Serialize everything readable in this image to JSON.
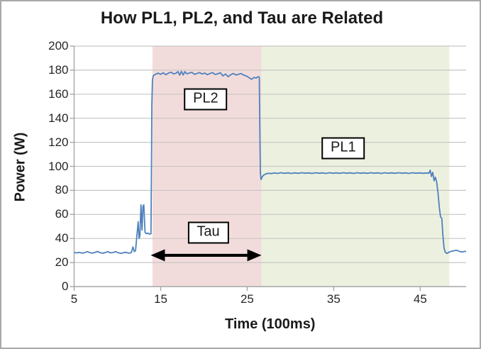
{
  "title": "How PL1, PL2, and Tau are Related",
  "chart_data": {
    "type": "line",
    "title": "How PL1, PL2, and Tau are Related",
    "xlabel": "Time (100ms)",
    "ylabel": "Power (W)",
    "xlim": [
      5,
      50.3
    ],
    "ylim": [
      0,
      200
    ],
    "x_ticks": [
      5,
      15,
      25,
      35,
      45
    ],
    "y_ticks": [
      0,
      20,
      40,
      60,
      80,
      100,
      120,
      140,
      160,
      180,
      200
    ],
    "grid": "horizontal",
    "legend": "none",
    "colors": {
      "line": "#4f81bd",
      "tau_region": "#f2dcdb",
      "pl1_region": "#ecf1df",
      "gridline": "#c6c6c6",
      "axis": "#a6a6a6",
      "annotation_border": "#000000",
      "annotation_fill": "#ffffff",
      "arrow": "#000000"
    },
    "regions": [
      {
        "name": "tau-region",
        "x0": 14.05,
        "x1": 26.65,
        "color": "#f2dcdb"
      },
      {
        "name": "pl1-region",
        "x0": 26.65,
        "x1": 48.35,
        "color": "#ecf1df"
      }
    ],
    "annotations": [
      {
        "name": "pl2-label",
        "label": "PL2",
        "x": 20.2,
        "y": 156
      },
      {
        "name": "pl1-label",
        "label": "PL1",
        "x": 36.1,
        "y": 115
      },
      {
        "name": "tau-label",
        "label": "Tau",
        "x": 20.5,
        "y": 45
      }
    ],
    "arrow": {
      "name": "tau-arrow",
      "x0": 13.85,
      "x1": 26.65,
      "y": 26,
      "double_headed": true
    },
    "series": [
      {
        "name": "Power",
        "points": [
          [
            5.0,
            28.3
          ],
          [
            5.3,
            28.0
          ],
          [
            5.6,
            28.5
          ],
          [
            5.9,
            27.8
          ],
          [
            6.2,
            28.2
          ],
          [
            6.5,
            29.0
          ],
          [
            6.8,
            28.3
          ],
          [
            7.1,
            27.8
          ],
          [
            7.4,
            28.4
          ],
          [
            7.7,
            29.2
          ],
          [
            8.0,
            28.2
          ],
          [
            8.3,
            27.7
          ],
          [
            8.6,
            28.3
          ],
          [
            8.9,
            29.0
          ],
          [
            9.2,
            28.0
          ],
          [
            9.5,
            28.3
          ],
          [
            9.8,
            29.1
          ],
          [
            10.1,
            28.1
          ],
          [
            10.4,
            27.6
          ],
          [
            10.7,
            28.2
          ],
          [
            11.0,
            28.5
          ],
          [
            11.3,
            27.8
          ],
          [
            11.6,
            28.2
          ],
          [
            11.8,
            33.0
          ],
          [
            11.95,
            29.0
          ],
          [
            12.1,
            30.0
          ],
          [
            12.25,
            42.0
          ],
          [
            12.4,
            54.0
          ],
          [
            12.5,
            40.0
          ],
          [
            12.6,
            42.5
          ],
          [
            12.72,
            68.0
          ],
          [
            12.85,
            47.0
          ],
          [
            12.95,
            66.5
          ],
          [
            13.05,
            68.0
          ],
          [
            13.2,
            45.0
          ],
          [
            13.35,
            44.0
          ],
          [
            13.55,
            44.5
          ],
          [
            13.75,
            43.5
          ],
          [
            13.88,
            44.0
          ],
          [
            13.93,
            90.0
          ],
          [
            13.98,
            150.0
          ],
          [
            14.05,
            172.0
          ],
          [
            14.15,
            175.5
          ],
          [
            14.4,
            176.5
          ],
          [
            14.7,
            177.5
          ],
          [
            15.0,
            176.5
          ],
          [
            15.3,
            177.8
          ],
          [
            15.6,
            176.2
          ],
          [
            15.9,
            177.5
          ],
          [
            16.2,
            178.3
          ],
          [
            16.5,
            176.8
          ],
          [
            16.8,
            177.6
          ],
          [
            17.0,
            178.8
          ],
          [
            17.2,
            175.8
          ],
          [
            17.4,
            179.0
          ],
          [
            17.6,
            176.0
          ],
          [
            17.8,
            178.8
          ],
          [
            18.0,
            177.0
          ],
          [
            18.3,
            177.6
          ],
          [
            18.6,
            178.2
          ],
          [
            18.9,
            176.6
          ],
          [
            19.2,
            177.2
          ],
          [
            19.5,
            178.0
          ],
          [
            19.8,
            176.8
          ],
          [
            20.1,
            177.6
          ],
          [
            20.4,
            176.2
          ],
          [
            20.7,
            177.2
          ],
          [
            21.0,
            178.0
          ],
          [
            21.3,
            176.4
          ],
          [
            21.6,
            177.0
          ],
          [
            21.9,
            177.8
          ],
          [
            22.2,
            175.2
          ],
          [
            22.5,
            176.8
          ],
          [
            22.8,
            174.6
          ],
          [
            23.1,
            176.2
          ],
          [
            23.4,
            177.2
          ],
          [
            23.7,
            176.0
          ],
          [
            24.0,
            176.6
          ],
          [
            24.3,
            177.2
          ],
          [
            24.6,
            175.8
          ],
          [
            24.9,
            175.2
          ],
          [
            25.2,
            173.8
          ],
          [
            25.5,
            172.4
          ],
          [
            25.8,
            174.0
          ],
          [
            26.05,
            173.4
          ],
          [
            26.25,
            174.6
          ],
          [
            26.4,
            174.2
          ],
          [
            26.45,
            140.0
          ],
          [
            26.52,
            95.0
          ],
          [
            26.6,
            89.0
          ],
          [
            26.75,
            91.5
          ],
          [
            26.95,
            93.0
          ],
          [
            27.2,
            93.8
          ],
          [
            27.5,
            94.3
          ],
          [
            27.8,
            94.0
          ],
          [
            28.1,
            94.5
          ],
          [
            28.5,
            94.1
          ],
          [
            28.9,
            94.7
          ],
          [
            29.3,
            94.2
          ],
          [
            29.7,
            94.6
          ],
          [
            30.1,
            94.1
          ],
          [
            30.5,
            94.6
          ],
          [
            30.9,
            94.2
          ],
          [
            31.3,
            94.7
          ],
          [
            31.7,
            94.3
          ],
          [
            32.1,
            94.6
          ],
          [
            32.5,
            94.1
          ],
          [
            32.9,
            94.7
          ],
          [
            33.3,
            94.3
          ],
          [
            33.7,
            94.6
          ],
          [
            34.1,
            94.1
          ],
          [
            34.5,
            94.7
          ],
          [
            34.9,
            94.3
          ],
          [
            35.3,
            94.6
          ],
          [
            35.7,
            94.2
          ],
          [
            36.1,
            94.7
          ],
          [
            36.5,
            94.3
          ],
          [
            36.9,
            94.6
          ],
          [
            37.3,
            94.1
          ],
          [
            37.7,
            94.7
          ],
          [
            38.1,
            94.3
          ],
          [
            38.5,
            94.6
          ],
          [
            38.9,
            94.2
          ],
          [
            39.3,
            94.7
          ],
          [
            39.7,
            94.3
          ],
          [
            40.1,
            94.6
          ],
          [
            40.5,
            94.1
          ],
          [
            40.9,
            94.7
          ],
          [
            41.3,
            94.3
          ],
          [
            41.7,
            94.6
          ],
          [
            42.1,
            94.2
          ],
          [
            42.5,
            94.7
          ],
          [
            42.9,
            94.3
          ],
          [
            43.3,
            94.6
          ],
          [
            43.7,
            94.1
          ],
          [
            44.1,
            94.7
          ],
          [
            44.5,
            94.3
          ],
          [
            44.9,
            94.6
          ],
          [
            45.3,
            94.2
          ],
          [
            45.7,
            94.5
          ],
          [
            46.0,
            94.3
          ],
          [
            46.15,
            96.8
          ],
          [
            46.3,
            91.5
          ],
          [
            46.45,
            95.0
          ],
          [
            46.6,
            88.0
          ],
          [
            46.75,
            91.0
          ],
          [
            46.9,
            87.0
          ],
          [
            47.05,
            78.0
          ],
          [
            47.2,
            66.0
          ],
          [
            47.35,
            58.0
          ],
          [
            47.5,
            56.5
          ],
          [
            47.6,
            44.0
          ],
          [
            47.75,
            32.0
          ],
          [
            47.9,
            28.5
          ],
          [
            48.1,
            27.6
          ],
          [
            48.35,
            28.8
          ],
          [
            48.6,
            29.3
          ],
          [
            48.9,
            29.8
          ],
          [
            49.2,
            30.2
          ],
          [
            49.5,
            29.4
          ],
          [
            49.8,
            28.8
          ],
          [
            50.1,
            29.2
          ],
          [
            50.3,
            29.3
          ]
        ]
      }
    ]
  }
}
